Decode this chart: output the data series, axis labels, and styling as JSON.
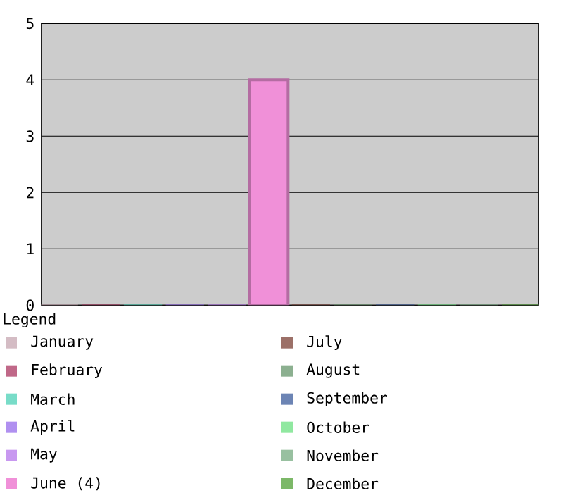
{
  "chart_data": {
    "type": "bar",
    "categories": [
      null
    ],
    "legend_title": "Legend",
    "ylim": [
      0,
      5
    ],
    "yticks": [
      0,
      1,
      2,
      3,
      4,
      5
    ],
    "grid": "y",
    "legend": "bottom",
    "series": [
      {
        "name": "January",
        "color": "#d4bcc4",
        "values": [
          0
        ]
      },
      {
        "name": "February",
        "color": "#c06888",
        "values": [
          0
        ]
      },
      {
        "name": "March",
        "color": "#78dcc8",
        "values": [
          0
        ]
      },
      {
        "name": "April",
        "color": "#b090f0",
        "values": [
          0
        ]
      },
      {
        "name": "May",
        "color": "#c898f0",
        "values": [
          0
        ]
      },
      {
        "name": "June (4)",
        "color": "#f090d8",
        "values": [
          4
        ]
      },
      {
        "name": "July",
        "color": "#9c7068",
        "values": [
          0
        ]
      },
      {
        "name": "August",
        "color": "#8cb090",
        "values": [
          0
        ]
      },
      {
        "name": "September",
        "color": "#6c84b4",
        "values": [
          0
        ]
      },
      {
        "name": "October",
        "color": "#90e8a0",
        "values": [
          0
        ]
      },
      {
        "name": "November",
        "color": "#98c0a0",
        "values": [
          0
        ]
      },
      {
        "name": "December",
        "color": "#7cb868",
        "values": [
          0
        ]
      }
    ]
  }
}
